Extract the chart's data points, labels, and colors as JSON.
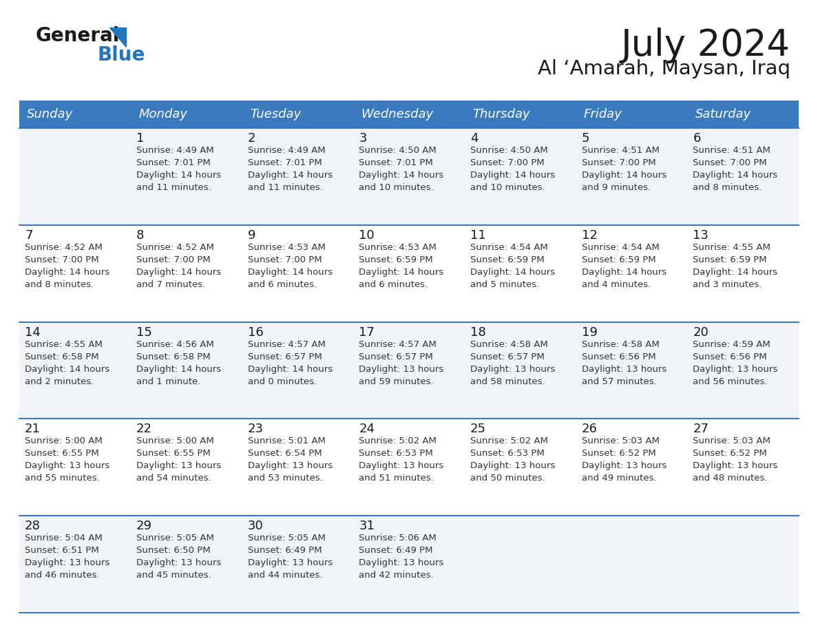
{
  "title": "July 2024",
  "subtitle": "Al ‘Amarah, Maysan, Iraq",
  "header_bg": "#3a7abf",
  "header_text_color": "#ffffff",
  "row_bg_odd": "#f0f4f8",
  "row_bg_even": "#ffffff",
  "border_color": "#3a7abf",
  "days_of_week": [
    "Sunday",
    "Monday",
    "Tuesday",
    "Wednesday",
    "Thursday",
    "Friday",
    "Saturday"
  ],
  "cell_data": [
    [
      "",
      "1\nSunrise: 4:49 AM\nSunset: 7:01 PM\nDaylight: 14 hours\nand 11 minutes.",
      "2\nSunrise: 4:49 AM\nSunset: 7:01 PM\nDaylight: 14 hours\nand 11 minutes.",
      "3\nSunrise: 4:50 AM\nSunset: 7:01 PM\nDaylight: 14 hours\nand 10 minutes.",
      "4\nSunrise: 4:50 AM\nSunset: 7:00 PM\nDaylight: 14 hours\nand 10 minutes.",
      "5\nSunrise: 4:51 AM\nSunset: 7:00 PM\nDaylight: 14 hours\nand 9 minutes.",
      "6\nSunrise: 4:51 AM\nSunset: 7:00 PM\nDaylight: 14 hours\nand 8 minutes."
    ],
    [
      "7\nSunrise: 4:52 AM\nSunset: 7:00 PM\nDaylight: 14 hours\nand 8 minutes.",
      "8\nSunrise: 4:52 AM\nSunset: 7:00 PM\nDaylight: 14 hours\nand 7 minutes.",
      "9\nSunrise: 4:53 AM\nSunset: 7:00 PM\nDaylight: 14 hours\nand 6 minutes.",
      "10\nSunrise: 4:53 AM\nSunset: 6:59 PM\nDaylight: 14 hours\nand 6 minutes.",
      "11\nSunrise: 4:54 AM\nSunset: 6:59 PM\nDaylight: 14 hours\nand 5 minutes.",
      "12\nSunrise: 4:54 AM\nSunset: 6:59 PM\nDaylight: 14 hours\nand 4 minutes.",
      "13\nSunrise: 4:55 AM\nSunset: 6:59 PM\nDaylight: 14 hours\nand 3 minutes."
    ],
    [
      "14\nSunrise: 4:55 AM\nSunset: 6:58 PM\nDaylight: 14 hours\nand 2 minutes.",
      "15\nSunrise: 4:56 AM\nSunset: 6:58 PM\nDaylight: 14 hours\nand 1 minute.",
      "16\nSunrise: 4:57 AM\nSunset: 6:57 PM\nDaylight: 14 hours\nand 0 minutes.",
      "17\nSunrise: 4:57 AM\nSunset: 6:57 PM\nDaylight: 13 hours\nand 59 minutes.",
      "18\nSunrise: 4:58 AM\nSunset: 6:57 PM\nDaylight: 13 hours\nand 58 minutes.",
      "19\nSunrise: 4:58 AM\nSunset: 6:56 PM\nDaylight: 13 hours\nand 57 minutes.",
      "20\nSunrise: 4:59 AM\nSunset: 6:56 PM\nDaylight: 13 hours\nand 56 minutes."
    ],
    [
      "21\nSunrise: 5:00 AM\nSunset: 6:55 PM\nDaylight: 13 hours\nand 55 minutes.",
      "22\nSunrise: 5:00 AM\nSunset: 6:55 PM\nDaylight: 13 hours\nand 54 minutes.",
      "23\nSunrise: 5:01 AM\nSunset: 6:54 PM\nDaylight: 13 hours\nand 53 minutes.",
      "24\nSunrise: 5:02 AM\nSunset: 6:53 PM\nDaylight: 13 hours\nand 51 minutes.",
      "25\nSunrise: 5:02 AM\nSunset: 6:53 PM\nDaylight: 13 hours\nand 50 minutes.",
      "26\nSunrise: 5:03 AM\nSunset: 6:52 PM\nDaylight: 13 hours\nand 49 minutes.",
      "27\nSunrise: 5:03 AM\nSunset: 6:52 PM\nDaylight: 13 hours\nand 48 minutes."
    ],
    [
      "28\nSunrise: 5:04 AM\nSunset: 6:51 PM\nDaylight: 13 hours\nand 46 minutes.",
      "29\nSunrise: 5:05 AM\nSunset: 6:50 PM\nDaylight: 13 hours\nand 45 minutes.",
      "30\nSunrise: 5:05 AM\nSunset: 6:49 PM\nDaylight: 13 hours\nand 44 minutes.",
      "31\nSunrise: 5:06 AM\nSunset: 6:49 PM\nDaylight: 13 hours\nand 42 minutes.",
      "",
      "",
      ""
    ]
  ],
  "logo_color_general": "#1a1a1a",
  "logo_color_blue": "#2176bc",
  "title_fontsize": 38,
  "subtitle_fontsize": 21,
  "day_header_fontsize": 13,
  "cell_day_fontsize": 13,
  "cell_info_fontsize": 9.5
}
